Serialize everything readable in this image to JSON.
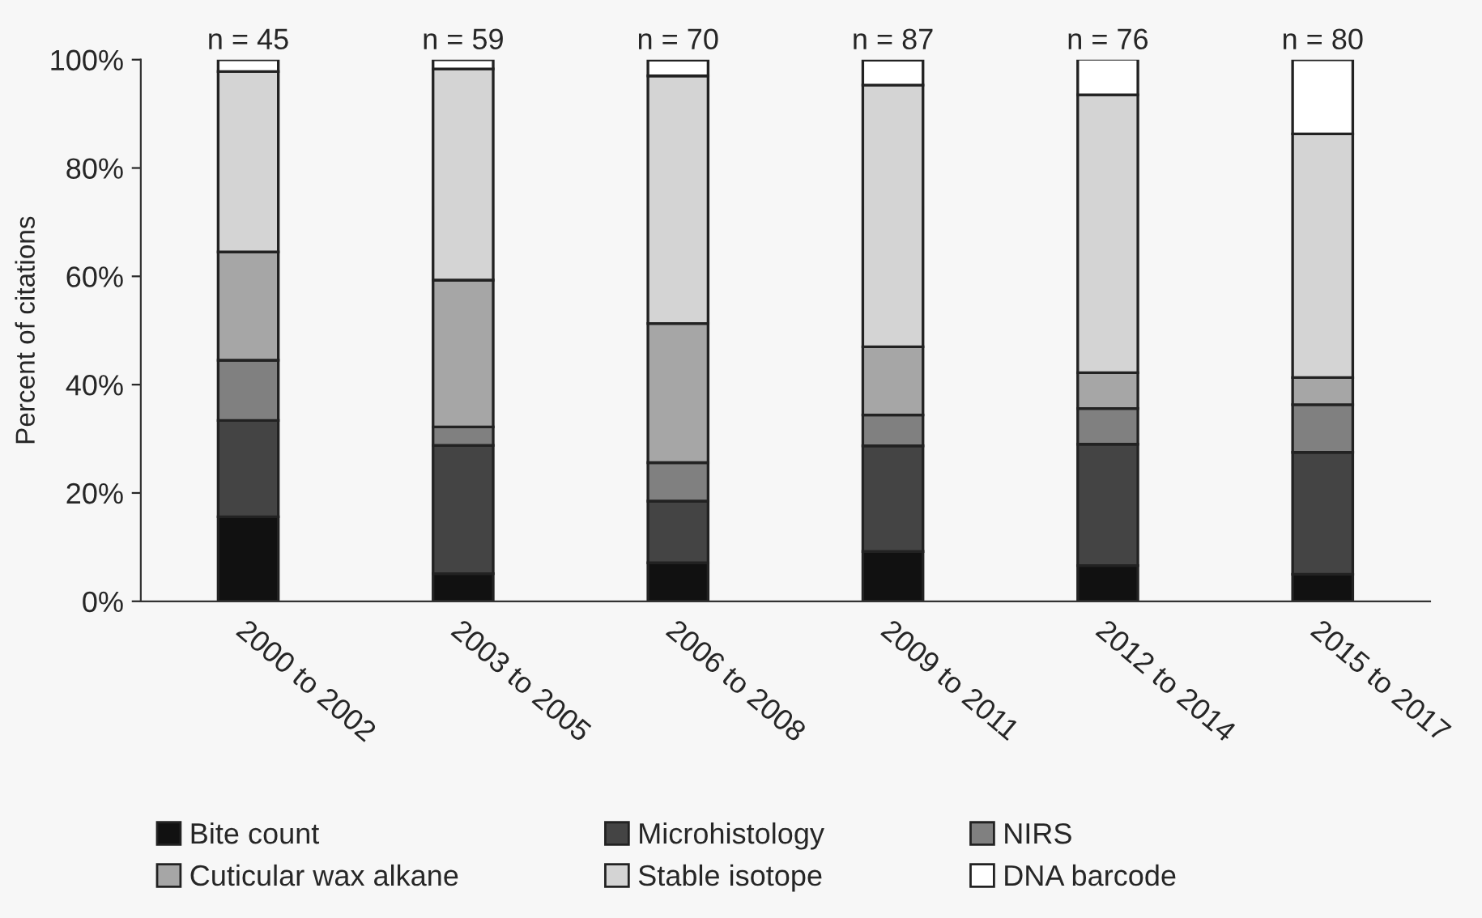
{
  "chart_data": {
    "type": "bar",
    "stacked": true,
    "ylabel": "Percent of citations",
    "categories": [
      "2000 to 2002",
      "2003 to 2005",
      "2006 to 2008",
      "2009 to 2011",
      "2012 to 2014",
      "2015 to 2017"
    ],
    "series": [
      {
        "name": "Bite count",
        "color": "#111111",
        "values": [
          15.6,
          5.1,
          7.1,
          9.2,
          6.6,
          5.0
        ]
      },
      {
        "name": "Microhistology",
        "color": "#444444",
        "values": [
          17.8,
          23.7,
          11.4,
          19.5,
          22.4,
          22.5
        ]
      },
      {
        "name": "NIRS",
        "color": "#808080",
        "values": [
          11.1,
          3.4,
          7.1,
          5.7,
          6.6,
          8.8
        ]
      },
      {
        "name": "Cuticular wax alkane",
        "color": "#a6a6a6",
        "values": [
          20.0,
          27.1,
          25.7,
          12.6,
          6.6,
          5.0
        ]
      },
      {
        "name": "Stable isotope",
        "color": "#d4d4d4",
        "values": [
          33.3,
          39.0,
          45.7,
          48.3,
          51.3,
          45.0
        ]
      },
      {
        "name": "DNA barcode",
        "color": "#ffffff",
        "values": [
          2.2,
          1.7,
          2.9,
          4.6,
          6.6,
          13.7
        ]
      }
    ],
    "ylim": [
      0,
      100
    ],
    "yticks": [
      {
        "value": 0,
        "label": "0%"
      },
      {
        "value": 20,
        "label": "20%"
      },
      {
        "value": 40,
        "label": "40%"
      },
      {
        "value": 60,
        "label": "60%"
      },
      {
        "value": 80,
        "label": "80%"
      },
      {
        "value": 100,
        "label": "100%"
      }
    ],
    "annotations": [
      {
        "text": "n = 45",
        "x": "2000 to 2002",
        "y": 100
      },
      {
        "text": "n = 59",
        "x": "2003 to 2005",
        "y": 100
      },
      {
        "text": "n = 70",
        "x": "2006 to 2008",
        "y": 100
      },
      {
        "text": "n = 87",
        "x": "2009 to 2011",
        "y": 100
      },
      {
        "text": "n = 76",
        "x": "2012 to 2014",
        "y": 100
      },
      {
        "text": "n = 80",
        "x": "2015 to 2017",
        "y": 100
      }
    ],
    "grid": false,
    "legend": "bottom"
  }
}
